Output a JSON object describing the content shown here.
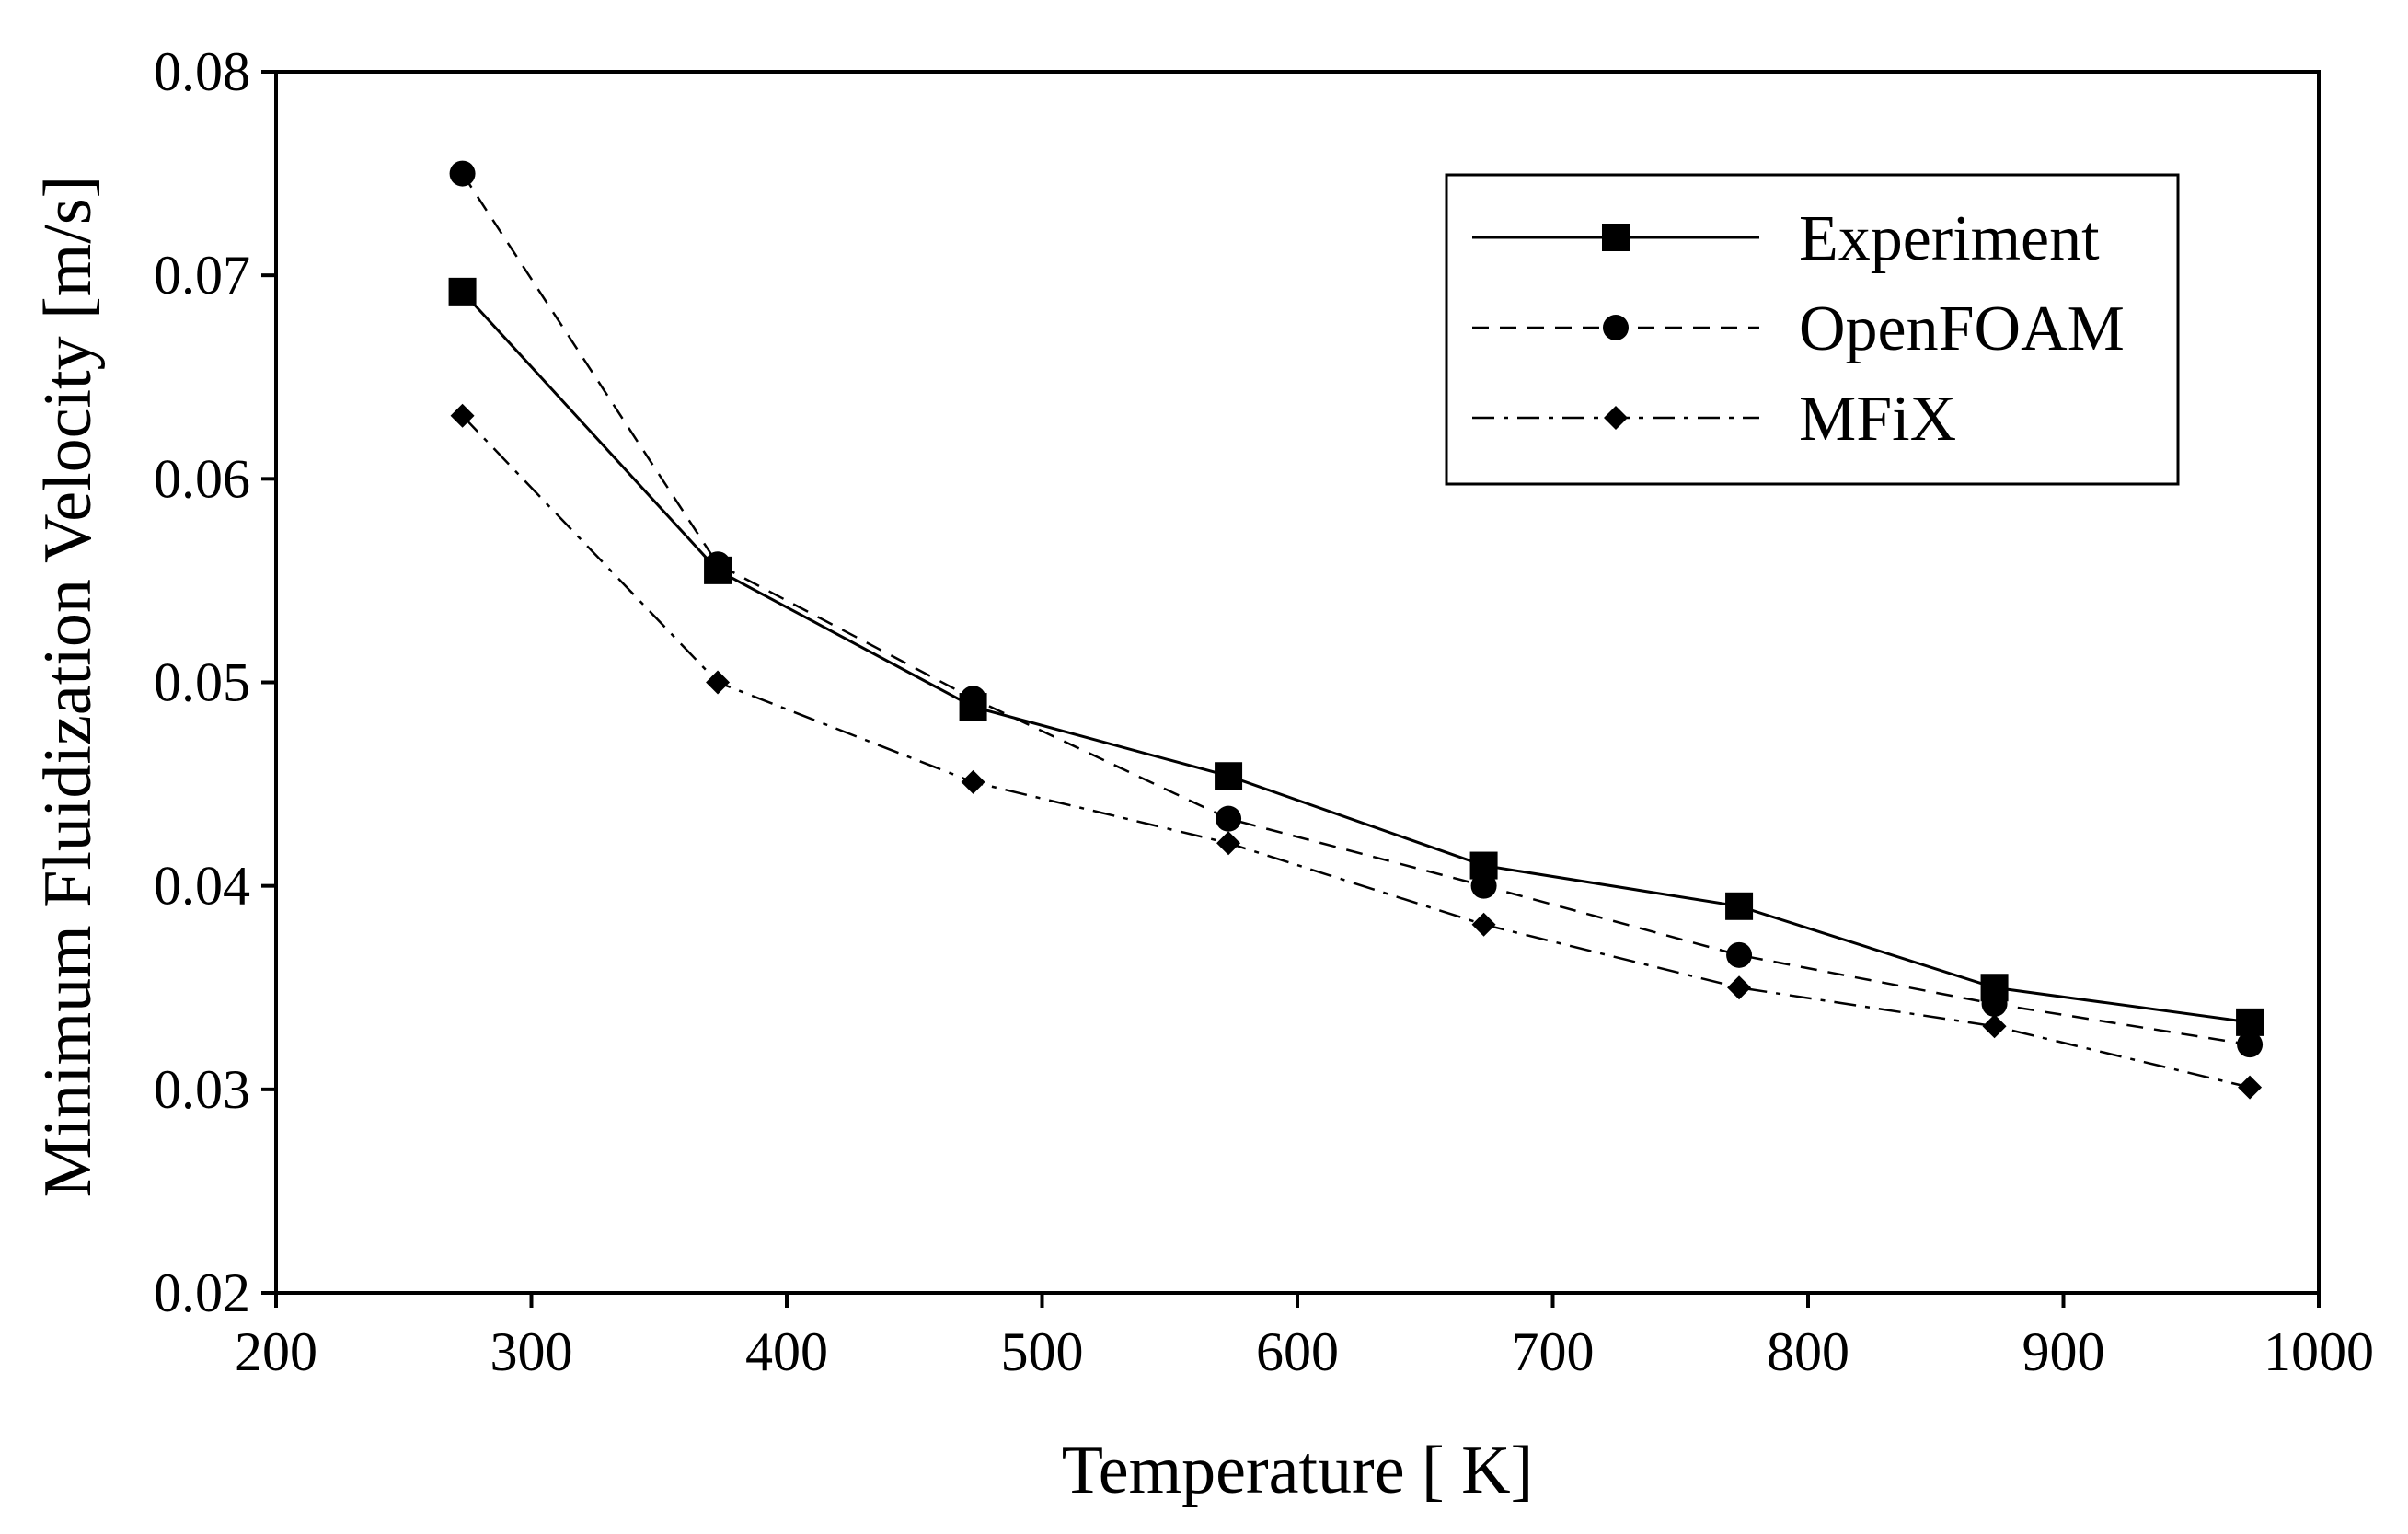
{
  "chart_data": {
    "type": "line",
    "title": "",
    "xlabel": "Temperature [ K]",
    "ylabel": "Minimum Fluidization Velocity [m/s]",
    "xlim": [
      200,
      1000
    ],
    "ylim": [
      0.02,
      0.08
    ],
    "x_ticks": [
      "200",
      "300",
      "400",
      "500",
      "600",
      "700",
      "800",
      "900",
      "1000"
    ],
    "y_ticks": [
      "0.02",
      "0.03",
      "0.04",
      "0.05",
      "0.06",
      "0.07",
      "0.08"
    ],
    "grid": false,
    "legend_position": "top-right",
    "x": [
      273,
      373,
      473,
      573,
      673,
      773,
      873,
      973
    ],
    "series": [
      {
        "name": "Experiment",
        "marker": "square",
        "line_style": "solid",
        "values": [
          0.0692,
          0.0555,
          0.0488,
          0.0454,
          0.041,
          0.039,
          0.035,
          0.0333
        ]
      },
      {
        "name": "OpenFOAM",
        "marker": "circle",
        "line_style": "dashed",
        "values": [
          0.075,
          0.0558,
          0.0492,
          0.0433,
          0.04,
          0.0366,
          0.0342,
          0.0322
        ]
      },
      {
        "name": "MFiX",
        "marker": "diamond",
        "line_style": "dashdot",
        "values": [
          0.0631,
          0.05,
          0.0451,
          0.0421,
          0.0381,
          0.035,
          0.0331,
          0.0301
        ]
      }
    ]
  }
}
